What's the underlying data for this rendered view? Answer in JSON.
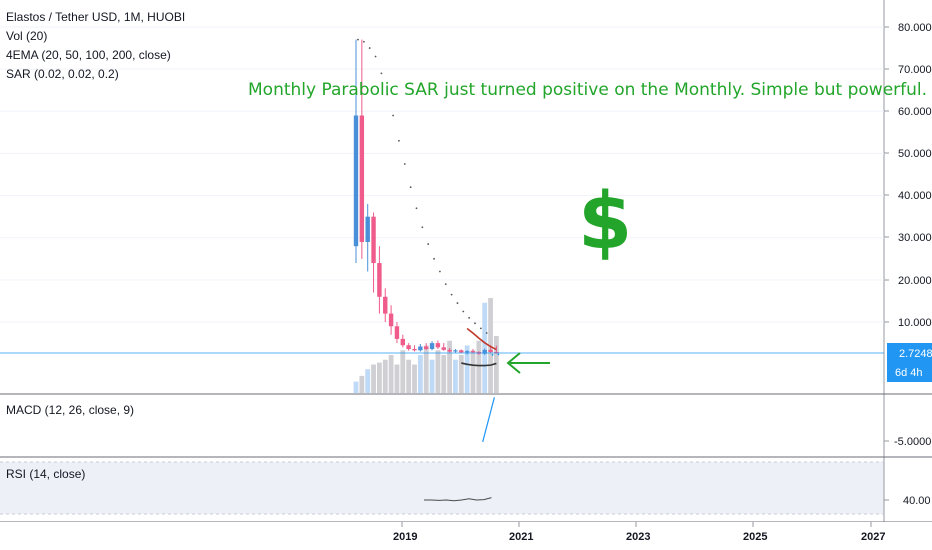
{
  "header": {
    "symbol": "Elastos / Tether USD, 1M, HUOBI",
    "indicators": [
      "Vol (20)",
      "4EMA (20, 50, 100, 200, close)",
      "SAR (0.02, 0.02, 0.2)"
    ]
  },
  "annotation": {
    "text": "Monthly Parabolic SAR just turned positive on the Monthly. Simple but powerful.",
    "symbol": "$"
  },
  "price_axis": {
    "ticks": [
      "80.0000",
      "70.0000",
      "60.0000",
      "50.0000",
      "40.0000",
      "30.0000",
      "20.0000",
      "10.0000"
    ],
    "last_price": "2.7248",
    "countdown": "6d 4h"
  },
  "macd_pane": {
    "label": "MACD (12, 26, close, 9)",
    "tick": "-5.0000"
  },
  "rsi_pane": {
    "label": "RSI (14, close)",
    "tick": "40.00"
  },
  "time_axis": {
    "ticks": [
      "2019",
      "2021",
      "2023",
      "2025",
      "2027"
    ]
  },
  "colors": {
    "up": "#4a90d9",
    "down": "#ef5b8a",
    "annotation": "#22a52a",
    "price_line": "#2196f3"
  },
  "chart_data": {
    "type": "candlestick",
    "title": "Elastos / Tether USD, 1M, HUOBI",
    "y_range": [
      0,
      85
    ],
    "x_ticks": [
      "2019",
      "2021",
      "2023",
      "2025",
      "2027"
    ],
    "candles": [
      {
        "o": 28,
        "h": 77,
        "l": 24,
        "c": 59
      },
      {
        "o": 59,
        "h": 77,
        "l": 25,
        "c": 29
      },
      {
        "o": 29,
        "h": 38,
        "l": 22,
        "c": 35
      },
      {
        "o": 35,
        "h": 36,
        "l": 17,
        "c": 24
      },
      {
        "o": 24,
        "h": 28,
        "l": 12,
        "c": 16
      },
      {
        "o": 16,
        "h": 18,
        "l": 10,
        "c": 12
      },
      {
        "o": 12,
        "h": 14,
        "l": 7,
        "c": 9
      },
      {
        "o": 9,
        "h": 10,
        "l": 5,
        "c": 6
      },
      {
        "o": 6,
        "h": 7,
        "l": 4,
        "c": 4.5
      },
      {
        "o": 4.5,
        "h": 5,
        "l": 3.2,
        "c": 3.6
      },
      {
        "o": 3.6,
        "h": 4.5,
        "l": 3,
        "c": 3.3
      },
      {
        "o": 3.3,
        "h": 4.8,
        "l": 3,
        "c": 4.2
      },
      {
        "o": 4.2,
        "h": 5,
        "l": 3.4,
        "c": 3.6
      },
      {
        "o": 3.6,
        "h": 5.5,
        "l": 3.3,
        "c": 5.0
      },
      {
        "o": 5.0,
        "h": 5.6,
        "l": 3.6,
        "c": 4.0
      },
      {
        "o": 4.0,
        "h": 5.0,
        "l": 3.2,
        "c": 3.4
      },
      {
        "o": 3.4,
        "h": 3.8,
        "l": 2.8,
        "c": 3.0
      },
      {
        "o": 3.0,
        "h": 3.6,
        "l": 2.7,
        "c": 3.3
      },
      {
        "o": 3.3,
        "h": 3.5,
        "l": 2.6,
        "c": 2.8
      },
      {
        "o": 2.8,
        "h": 3.3,
        "l": 2.3,
        "c": 3.1
      },
      {
        "o": 3.1,
        "h": 3.6,
        "l": 2.6,
        "c": 2.9
      },
      {
        "o": 2.9,
        "h": 3.1,
        "l": 2.2,
        "c": 2.5
      },
      {
        "o": 2.5,
        "h": 3.7,
        "l": 2.2,
        "c": 3.4
      },
      {
        "o": 3.4,
        "h": 4.5,
        "l": 2.7,
        "c": 2.9
      },
      {
        "o": 2.9,
        "h": 4.4,
        "l": 2.5,
        "c": 2.72
      }
    ],
    "sar": [
      77,
      76.5,
      75,
      73,
      69,
      64,
      59,
      53,
      47.5,
      42,
      37,
      32.5,
      28.5,
      25,
      22,
      19,
      16.5,
      14.5,
      12.5,
      11,
      9.7,
      8.5,
      7.4,
      2.2,
      2.3
    ],
    "ema_red": [
      null,
      null,
      null,
      null,
      null,
      null,
      null,
      null,
      null,
      null,
      null,
      null,
      null,
      null,
      null,
      null,
      null,
      null,
      null,
      9.9,
      8.8,
      7.6,
      6.5,
      5.6,
      4.9
    ],
    "ema_dark": [
      null,
      null,
      null,
      null,
      null,
      null,
      null,
      null,
      null,
      null,
      null,
      null,
      null,
      null,
      null,
      null,
      null,
      null,
      1.7,
      1.4,
      1.2,
      1.1,
      1.1,
      1.2,
      1.6
    ],
    "volume": [
      0.12,
      0.18,
      0.25,
      0.3,
      0.32,
      0.35,
      0.4,
      0.3,
      0.45,
      0.35,
      0.3,
      0.4,
      0.5,
      0.35,
      0.45,
      0.4,
      0.55,
      0.35,
      0.4,
      0.5,
      0.45,
      0.55,
      0.95,
      1.0,
      0.6
    ],
    "macd_line": [
      {
        "x": 22,
        "y": -5.2
      },
      {
        "x": 24,
        "y": 4.5
      }
    ],
    "rsi_line": [
      40,
      40,
      39.9,
      40,
      39.8,
      40,
      40.3,
      40,
      40.1,
      40.6
    ]
  }
}
